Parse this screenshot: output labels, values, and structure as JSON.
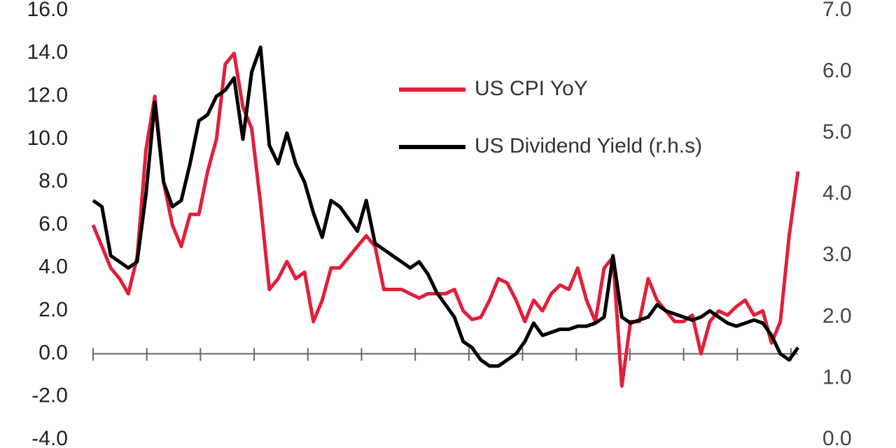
{
  "chart_data": {
    "type": "line",
    "series": [
      {
        "name": "US CPI YoY",
        "color": "#e0203a",
        "axis": "y",
        "values": [
          6.0,
          5.0,
          4.0,
          3.5,
          2.8,
          4.5,
          9.5,
          12,
          8,
          6.0,
          5.0,
          6.5,
          6.5,
          8.5,
          10,
          13.5,
          14,
          11.5,
          10.5,
          7,
          3.0,
          3.5,
          4.3,
          3.5,
          3.8,
          1.5,
          2.5,
          4.0,
          4.0,
          4.5,
          5.0,
          5.5,
          5.0,
          3.0,
          3.0,
          3.0,
          2.8,
          2.6,
          2.8,
          2.8,
          2.8,
          3.0,
          2.0,
          1.6,
          1.7,
          2.5,
          3.5,
          3.3,
          2.5,
          1.5,
          2.5,
          2.0,
          2.8,
          3.2,
          3.0,
          4.0,
          2.5,
          1.5,
          4.0,
          4.5,
          -1.5,
          1.5,
          1.5,
          3.5,
          2.5,
          2.0,
          1.5,
          1.5,
          1.8,
          0.0,
          1.5,
          2.0,
          1.8,
          2.2,
          2.5,
          1.8,
          2.0,
          0.5,
          1.5,
          5.5,
          8.5
        ]
      },
      {
        "name": "US Dividend Yield (r.h.s)",
        "color": "#000000",
        "axis": "y2",
        "values": [
          3.9,
          3.8,
          3.0,
          2.9,
          2.8,
          2.9,
          4.0,
          5.5,
          4.2,
          3.8,
          3.9,
          4.5,
          5.2,
          5.3,
          5.6,
          5.7,
          5.9,
          4.9,
          6.0,
          6.4,
          4.8,
          4.5,
          5.0,
          4.5,
          4.2,
          3.7,
          3.3,
          3.9,
          3.8,
          3.6,
          3.4,
          3.9,
          3.2,
          3.1,
          3.0,
          2.9,
          2.8,
          2.9,
          2.7,
          2.4,
          2.2,
          2.0,
          1.6,
          1.5,
          1.3,
          1.2,
          1.2,
          1.3,
          1.4,
          1.6,
          1.9,
          1.7,
          1.75,
          1.8,
          1.8,
          1.85,
          1.85,
          1.9,
          2.0,
          3.0,
          2.0,
          1.9,
          1.95,
          2.0,
          2.2,
          2.1,
          2.05,
          2.0,
          1.95,
          2.0,
          2.1,
          2.0,
          1.9,
          1.85,
          1.9,
          1.95,
          1.9,
          1.7,
          1.4,
          1.3,
          1.5
        ]
      }
    ],
    "ylim": [
      -4,
      16
    ],
    "yticks": [
      {
        "value": -4,
        "label": "-4.0"
      },
      {
        "value": -2,
        "label": "-2.0"
      },
      {
        "value": 0,
        "label": "0.0"
      },
      {
        "value": 2,
        "label": "2.0"
      },
      {
        "value": 4,
        "label": "4.0"
      },
      {
        "value": 6,
        "label": "6.0"
      },
      {
        "value": 8,
        "label": "8.0"
      },
      {
        "value": 10,
        "label": "10.0"
      },
      {
        "value": 12,
        "label": "12.0"
      },
      {
        "value": 14,
        "label": "14.0"
      },
      {
        "value": 16,
        "label": "16.0"
      }
    ],
    "y2lim": [
      0,
      7
    ],
    "y2ticks": [
      {
        "value": 0,
        "label": "0.0"
      },
      {
        "value": 1,
        "label": "1.0"
      },
      {
        "value": 2,
        "label": "2.0"
      },
      {
        "value": 3,
        "label": "3.0"
      },
      {
        "value": 4,
        "label": "4.0"
      },
      {
        "value": 5,
        "label": "5.0"
      },
      {
        "value": 6,
        "label": "6.0"
      },
      {
        "value": 7,
        "label": "7.0"
      }
    ],
    "grid": false
  }
}
